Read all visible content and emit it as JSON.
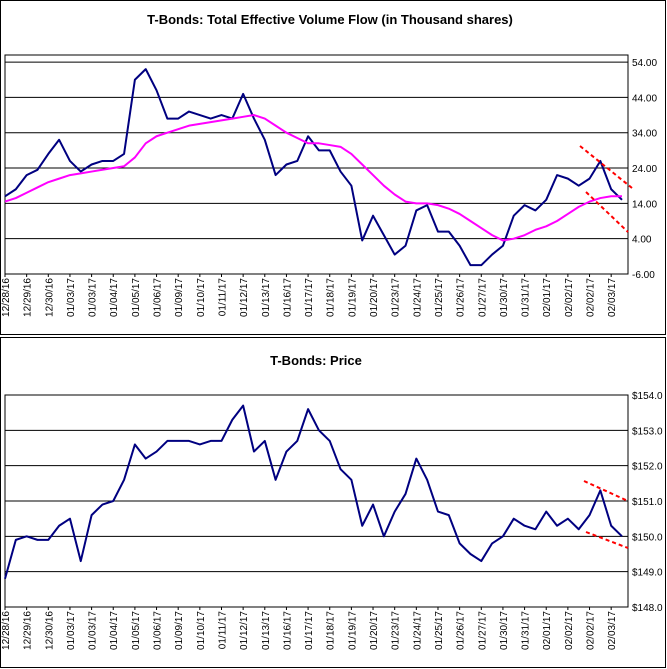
{
  "chart_data": [
    {
      "type": "line",
      "title": "T-Bonds: Total Effective Volume Flow (in Thousand shares)",
      "categories": [
        "12/28/16",
        null,
        "12/29/16",
        null,
        "12/30/16",
        null,
        "01/03/17",
        null,
        "01/03/17",
        null,
        "01/04/17",
        null,
        "01/05/17",
        null,
        "01/06/17",
        null,
        "01/09/17",
        null,
        "01/10/17",
        null,
        "01/11/17",
        null,
        "01/12/17",
        null,
        "01/13/17",
        null,
        "01/16/17",
        null,
        "01/17/17",
        null,
        "01/18/17",
        null,
        "01/19/17",
        null,
        "01/20/17",
        null,
        "01/23/17",
        null,
        "01/24/17",
        null,
        "01/25/17",
        null,
        "01/26/17",
        null,
        "01/27/17",
        null,
        "01/30/17",
        null,
        "01/31/17",
        null,
        "02/01/17",
        null,
        "02/02/17",
        null,
        "02/02/17",
        null,
        "02/03/17",
        null
      ],
      "series": [
        {
          "color": "#000080",
          "values": [
            16,
            18,
            22,
            23.5,
            28,
            32,
            26,
            23,
            25,
            26,
            26,
            28,
            49,
            52,
            46,
            38,
            38,
            40,
            39,
            38,
            39,
            38,
            45,
            38,
            32,
            22,
            25,
            26,
            33,
            29,
            29,
            23,
            19,
            3.5,
            10.5,
            5,
            -0.5,
            2,
            12,
            13.5,
            6,
            6,
            2,
            -3.5,
            -3.5,
            -0.5,
            2,
            10.5,
            13.5,
            12,
            15,
            22,
            21,
            19,
            21,
            26,
            18,
            15
          ]
        },
        {
          "color": "#ff00ff",
          "values": [
            14.5,
            15.5,
            17,
            18.5,
            20,
            21,
            22,
            22.5,
            23,
            23.5,
            24,
            24.5,
            27,
            31,
            33,
            34,
            35,
            36,
            36.5,
            37,
            37.5,
            38,
            38.5,
            39,
            38,
            36,
            34,
            32.5,
            31,
            31,
            30.5,
            30,
            28,
            25,
            22,
            19,
            16.5,
            14.5,
            14,
            14,
            13.5,
            12.5,
            11,
            9,
            7,
            5,
            3.5,
            4,
            5,
            6.5,
            7.5,
            9,
            11,
            13,
            14.5,
            15.5,
            16,
            16
          ]
        }
      ],
      "ylim": [
        -6,
        56
      ],
      "yticks": [
        {
          "value": -6,
          "label": "-6.00"
        },
        {
          "value": 4,
          "label": "4.00"
        },
        {
          "value": 14,
          "label": "14.00"
        },
        {
          "value": 24,
          "label": "24.00"
        },
        {
          "value": 34,
          "label": "34.00"
        },
        {
          "value": 44,
          "label": "44.00"
        },
        {
          "value": 54,
          "label": "54.00"
        }
      ],
      "grid": true
    },
    {
      "type": "line",
      "title": "T-Bonds: Price",
      "categories": [
        "12/28/16",
        null,
        "12/29/16",
        null,
        "12/30/16",
        null,
        "01/03/17",
        null,
        "01/03/17",
        null,
        "01/04/17",
        null,
        "01/05/17",
        null,
        "01/06/17",
        null,
        "01/09/17",
        null,
        "01/10/17",
        null,
        "01/11/17",
        null,
        "01/12/17",
        null,
        "01/13/17",
        null,
        "01/16/17",
        null,
        "01/17/17",
        null,
        "01/18/17",
        null,
        "01/19/17",
        null,
        "01/20/17",
        null,
        "01/23/17",
        null,
        "01/24/17",
        null,
        "01/25/17",
        null,
        "01/26/17",
        null,
        "01/27/17",
        null,
        "01/30/17",
        null,
        "01/31/17",
        null,
        "02/01/17",
        null,
        "02/02/17",
        null,
        "02/02/17",
        null,
        "02/03/17",
        null
      ],
      "series": [
        {
          "color": "#000080",
          "values": [
            148.8,
            149.9,
            150.0,
            149.9,
            149.9,
            150.3,
            150.5,
            149.3,
            150.6,
            150.9,
            151.0,
            151.6,
            152.6,
            152.2,
            152.4,
            152.7,
            152.7,
            152.7,
            152.6,
            152.7,
            152.7,
            153.3,
            153.7,
            152.4,
            152.7,
            151.6,
            152.4,
            152.7,
            153.6,
            153.0,
            152.7,
            151.9,
            151.6,
            150.3,
            150.9,
            150.0,
            150.7,
            151.2,
            152.2,
            151.6,
            150.7,
            150.6,
            149.8,
            149.5,
            149.3,
            149.8,
            150.0,
            150.5,
            150.3,
            150.2,
            150.7,
            150.3,
            150.5,
            150.2,
            150.6,
            151.3,
            150.3,
            150.0
          ]
        }
      ],
      "ylim": [
        148,
        154
      ],
      "yticks": [
        {
          "value": 148,
          "label": "$148.0"
        },
        {
          "value": 149,
          "label": "$149.0"
        },
        {
          "value": 150,
          "label": "$150.0"
        },
        {
          "value": 151,
          "label": "$151.0"
        },
        {
          "value": 152,
          "label": "$152.0"
        },
        {
          "value": 153,
          "label": "$153.0"
        },
        {
          "value": 154,
          "label": "$154.0"
        }
      ],
      "grid": true
    }
  ]
}
